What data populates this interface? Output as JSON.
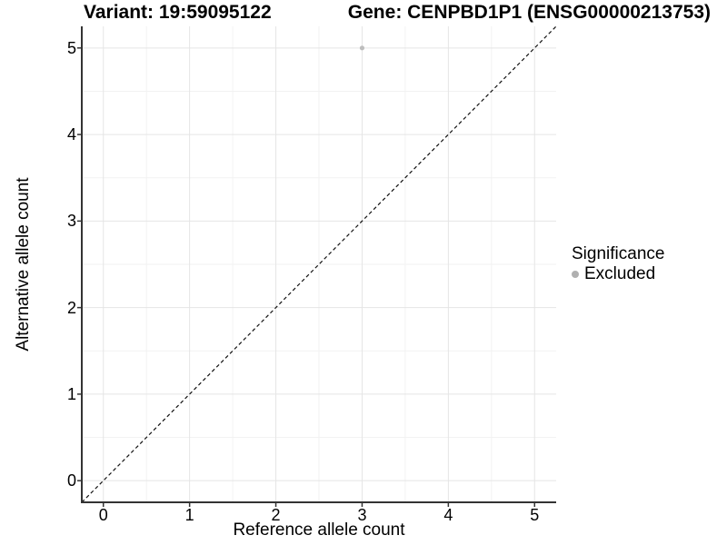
{
  "titles": {
    "variant": "Variant: 19:59095122",
    "gene": "Gene: CENPBD1P1 (ENSG00000213753)"
  },
  "chart_data": {
    "type": "scatter",
    "title_left": "Variant: 19:59095122",
    "title_right": "Gene: CENPBD1P1 (ENSG00000213753)",
    "xlabel": "Reference allele count",
    "ylabel": "Alternative allele count",
    "xlim": [
      -0.25,
      5.25
    ],
    "ylim": [
      -0.25,
      5.25
    ],
    "xticks": [
      0,
      1,
      2,
      3,
      4,
      5
    ],
    "yticks": [
      0,
      1,
      2,
      3,
      4,
      5
    ],
    "minor_grid_step": 0.5,
    "grid": "major+minor",
    "series": [
      {
        "name": "Excluded",
        "color": "#b5b5b5",
        "points": [
          {
            "x": 3,
            "y": 5
          }
        ]
      }
    ],
    "reference_line": {
      "type": "y=x",
      "style": "dashed",
      "color": "#111111"
    },
    "legend": {
      "title": "Significance",
      "position": "right",
      "entries": [
        {
          "label": "Excluded",
          "color": "#b0b0b0"
        }
      ]
    }
  },
  "colors": {
    "background": "#ffffff",
    "grid_major": "#e5e5e5",
    "grid_minor": "#f2f2f2",
    "axis_line": "#333333",
    "point": "#bdbdbd",
    "text": "#000000"
  }
}
